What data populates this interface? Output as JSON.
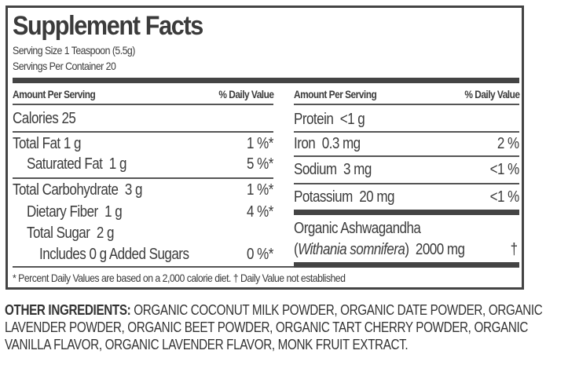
{
  "title": "Supplement Facts",
  "serving_size": "Serving Size 1 Teaspoon (5.5g)",
  "servings_per_container": "Servings Per Container 20",
  "left": {
    "header": {
      "amount": "Amount Per Serving",
      "dv": "% Daily Value"
    },
    "calories": "Calories  25",
    "rows": [
      {
        "label": "Total Fat",
        "amount": " 1 g",
        "dv": "1 %*"
      },
      {
        "label": "Saturated Fat",
        "amount": "  1 g",
        "dv": "5 %*"
      },
      {
        "label": "Total Carbohydrate",
        "amount": "  3 g",
        "dv": "1 %*"
      },
      {
        "label": "Dietary Fiber",
        "amount": "  1 g",
        "dv": "4 %*"
      },
      {
        "label": "Total Sugar",
        "amount": "  2 g",
        "dv": ""
      },
      {
        "label": "Includes 0 g Added Sugars",
        "amount": "",
        "dv": "0 %*"
      }
    ]
  },
  "right": {
    "header": {
      "amount": "Amount Per Serving",
      "dv": "% Daily Value"
    },
    "rows": [
      {
        "label": "Protein",
        "amount": "  <1 g",
        "dv": ""
      },
      {
        "label": "Iron",
        "amount": "  0.3 mg",
        "dv": "2 %"
      },
      {
        "label": "Sodium",
        "amount": "  3 mg",
        "dv": "<1 %"
      },
      {
        "label": "Potassium",
        "amount": "  20 mg",
        "dv": "<1 %"
      }
    ],
    "ashwagandha": {
      "name": "Organic Ashwagandha",
      "open": "(",
      "latin": "Withania somnifera",
      "close": ")",
      "amount": "  2000 mg",
      "dv": "†"
    }
  },
  "footnote": "* Percent Daily Values are based on a 2,000 calorie diet.  † Daily Value not established",
  "ingredients": {
    "label": "OTHER INGREDIENTS:",
    "text": " ORGANIC COCONUT MILK POWDER, ORGANIC DATE POWDER, ORGANIC LAVENDER POWDER, ORGANIC BEET POWDER, ORGANIC TART CHERRY POWDER, ORGANIC VANILLA FLAVOR, ORGANIC LAVENDER FLAVOR, MONK FRUIT EXTRACT."
  }
}
